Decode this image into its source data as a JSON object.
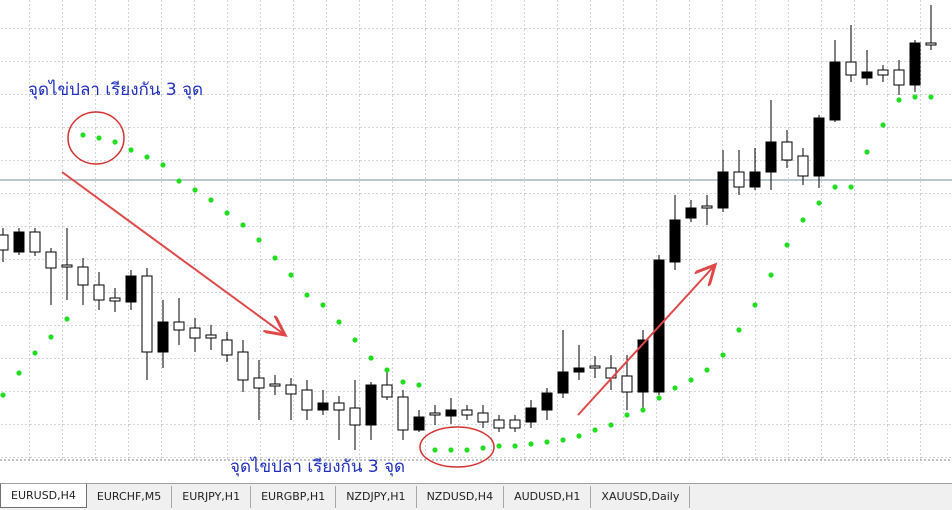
{
  "chart_data": {
    "type": "candlestick",
    "open": [
      225,
      208,
      228,
      208,
      195,
      193,
      175,
      162,
      158,
      184,
      108,
      138,
      132,
      125,
      120,
      108,
      82,
      76,
      75,
      70,
      50,
      57,
      52,
      35,
      75,
      63,
      30,
      47,
      44,
      50,
      47,
      40,
      40,
      38,
      50,
      67,
      88,
      94,
      92,
      84,
      68,
      68,
      198,
      242,
      254,
      252,
      288,
      273,
      288,
      318,
      304,
      284,
      340,
      398,
      382,
      390,
      390,
      375,
      417
    ],
    "high": [
      232,
      232,
      232,
      212,
      232,
      202,
      188,
      172,
      190,
      192,
      160,
      162,
      142,
      135,
      128,
      120,
      100,
      85,
      82,
      80,
      70,
      64,
      80,
      78,
      90,
      70,
      50,
      55,
      62,
      55,
      55,
      45,
      45,
      60,
      72,
      130,
      115,
      104,
      105,
      105,
      130,
      205,
      265,
      260,
      265,
      310,
      310,
      312,
      360,
      330,
      312,
      345,
      420,
      435,
      410,
      395,
      400,
      420,
      455
    ],
    "low": [
      198,
      205,
      204,
      155,
      160,
      155,
      150,
      148,
      150,
      80,
      92,
      115,
      108,
      110,
      98,
      68,
      40,
      65,
      40,
      40,
      45,
      20,
      10,
      20,
      60,
      20,
      28,
      35,
      36,
      40,
      32,
      28,
      28,
      32,
      40,
      62,
      80,
      82,
      70,
      50,
      50,
      65,
      190,
      238,
      235,
      248,
      265,
      270,
      270,
      292,
      275,
      272,
      338,
      378,
      375,
      378,
      365,
      368,
      410
    ],
    "close": [
      210,
      228,
      208,
      192,
      193,
      175,
      160,
      159,
      184,
      108,
      138,
      130,
      122,
      122,
      105,
      80,
      72,
      74,
      66,
      50,
      57,
      50,
      35,
      75,
      63,
      30,
      43,
      45,
      50,
      45,
      38,
      32,
      32,
      52,
      67,
      88,
      92,
      92,
      82,
      68,
      120,
      200,
      240,
      252,
      252,
      288,
      273,
      288,
      318,
      300,
      284,
      342,
      398,
      385,
      388,
      385,
      375,
      417,
      415
    ],
    "sar": [
      65,
      87,
      107,
      123,
      141,
      325,
      322,
      318,
      310,
      303,
      295,
      279,
      270,
      260,
      247,
      235,
      220,
      202,
      185,
      165,
      155,
      138,
      120,
      102,
      90,
      78,
      75,
      10,
      10,
      10,
      12,
      14,
      14,
      16,
      18,
      20,
      24,
      30,
      35,
      45,
      50,
      62,
      72,
      80,
      90,
      105,
      130,
      155,
      185,
      215,
      240,
      257,
      273,
      273,
      308,
      335,
      360,
      363,
      363
    ],
    "sar_color": "#22dd22",
    "up_color": "#000000",
    "down_color": "#ffffff",
    "horizontal_line": 280,
    "ylim": [
      0,
      460
    ],
    "grid": true,
    "annotations": [
      "จุดไข่ปลา เรียงกัน 3 จุด",
      "จุดไข่ปลา เรียงกัน 3 จุด"
    ]
  },
  "tabs": [
    "EURUSD,H4",
    "EURCHF,M5",
    "EURJPY,H1",
    "EURGBP,H1",
    "NZDJPY,H1",
    "NZDUSD,H4",
    "AUDUSD,H1",
    "XAUUSD,Daily"
  ],
  "active_tab": 0
}
